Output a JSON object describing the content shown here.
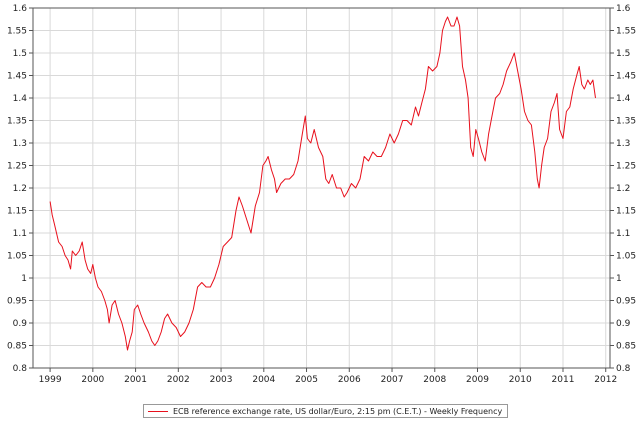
{
  "chart_data": {
    "type": "line",
    "title": "",
    "xlabel": "",
    "ylabel": "",
    "xlim": [
      1998.6,
      2012.1
    ],
    "ylim": [
      0.8,
      1.6
    ],
    "x_ticks": [
      "1999",
      "2000",
      "2001",
      "2002",
      "2003",
      "2004",
      "2005",
      "2006",
      "2007",
      "2008",
      "2009",
      "2010",
      "2011",
      "2012"
    ],
    "y_ticks": [
      "0.8",
      "0.85",
      "0.9",
      "0.95",
      "1",
      "1.05",
      "1.1",
      "1.15",
      "1.2",
      "1.25",
      "1.3",
      "1.35",
      "1.4",
      "1.45",
      "1.5",
      "1.55",
      "1.6"
    ],
    "grid": true,
    "legend_position": "bottom-center",
    "series": [
      {
        "name": "ECB reference exchange rate, US dollar/Euro, 2:15 pm (C.E.T.) - Weekly Frequency",
        "color": "#e8101c",
        "points": [
          [
            1999.0,
            1.17
          ],
          [
            1999.05,
            1.14
          ],
          [
            1999.1,
            1.12
          ],
          [
            1999.15,
            1.1
          ],
          [
            1999.2,
            1.08
          ],
          [
            1999.28,
            1.07
          ],
          [
            1999.35,
            1.05
          ],
          [
            1999.42,
            1.04
          ],
          [
            1999.48,
            1.02
          ],
          [
            1999.52,
            1.06
          ],
          [
            1999.6,
            1.05
          ],
          [
            1999.68,
            1.06
          ],
          [
            1999.75,
            1.08
          ],
          [
            1999.82,
            1.04
          ],
          [
            1999.88,
            1.02
          ],
          [
            1999.95,
            1.01
          ],
          [
            2000.0,
            1.03
          ],
          [
            2000.06,
            1.0
          ],
          [
            2000.12,
            0.98
          ],
          [
            2000.2,
            0.97
          ],
          [
            2000.28,
            0.95
          ],
          [
            2000.34,
            0.93
          ],
          [
            2000.38,
            0.9
          ],
          [
            2000.45,
            0.94
          ],
          [
            2000.52,
            0.95
          ],
          [
            2000.6,
            0.92
          ],
          [
            2000.68,
            0.9
          ],
          [
            2000.76,
            0.87
          ],
          [
            2000.81,
            0.84
          ],
          [
            2000.86,
            0.86
          ],
          [
            2000.92,
            0.88
          ],
          [
            2000.97,
            0.93
          ],
          [
            2001.05,
            0.94
          ],
          [
            2001.12,
            0.92
          ],
          [
            2001.2,
            0.9
          ],
          [
            2001.3,
            0.88
          ],
          [
            2001.38,
            0.86
          ],
          [
            2001.45,
            0.85
          ],
          [
            2001.52,
            0.86
          ],
          [
            2001.6,
            0.88
          ],
          [
            2001.68,
            0.91
          ],
          [
            2001.75,
            0.92
          ],
          [
            2001.85,
            0.9
          ],
          [
            2001.95,
            0.89
          ],
          [
            2002.05,
            0.87
          ],
          [
            2002.15,
            0.88
          ],
          [
            2002.25,
            0.9
          ],
          [
            2002.35,
            0.93
          ],
          [
            2002.45,
            0.98
          ],
          [
            2002.55,
            0.99
          ],
          [
            2002.65,
            0.98
          ],
          [
            2002.75,
            0.98
          ],
          [
            2002.85,
            1.0
          ],
          [
            2002.95,
            1.03
          ],
          [
            2003.05,
            1.07
          ],
          [
            2003.15,
            1.08
          ],
          [
            2003.25,
            1.09
          ],
          [
            2003.35,
            1.15
          ],
          [
            2003.42,
            1.18
          ],
          [
            2003.5,
            1.16
          ],
          [
            2003.6,
            1.13
          ],
          [
            2003.7,
            1.1
          ],
          [
            2003.8,
            1.16
          ],
          [
            2003.9,
            1.19
          ],
          [
            2003.98,
            1.25
          ],
          [
            2004.05,
            1.26
          ],
          [
            2004.1,
            1.27
          ],
          [
            2004.18,
            1.24
          ],
          [
            2004.25,
            1.22
          ],
          [
            2004.3,
            1.19
          ],
          [
            2004.4,
            1.21
          ],
          [
            2004.5,
            1.22
          ],
          [
            2004.6,
            1.22
          ],
          [
            2004.7,
            1.23
          ],
          [
            2004.8,
            1.26
          ],
          [
            2004.9,
            1.32
          ],
          [
            2004.97,
            1.36
          ],
          [
            2005.02,
            1.31
          ],
          [
            2005.1,
            1.3
          ],
          [
            2005.18,
            1.33
          ],
          [
            2005.28,
            1.29
          ],
          [
            2005.38,
            1.27
          ],
          [
            2005.45,
            1.22
          ],
          [
            2005.52,
            1.21
          ],
          [
            2005.6,
            1.23
          ],
          [
            2005.7,
            1.2
          ],
          [
            2005.8,
            1.2
          ],
          [
            2005.88,
            1.18
          ],
          [
            2005.95,
            1.19
          ],
          [
            2006.05,
            1.21
          ],
          [
            2006.15,
            1.2
          ],
          [
            2006.25,
            1.22
          ],
          [
            2006.35,
            1.27
          ],
          [
            2006.45,
            1.26
          ],
          [
            2006.55,
            1.28
          ],
          [
            2006.65,
            1.27
          ],
          [
            2006.75,
            1.27
          ],
          [
            2006.85,
            1.29
          ],
          [
            2006.95,
            1.32
          ],
          [
            2007.05,
            1.3
          ],
          [
            2007.15,
            1.32
          ],
          [
            2007.25,
            1.35
          ],
          [
            2007.35,
            1.35
          ],
          [
            2007.45,
            1.34
          ],
          [
            2007.55,
            1.38
          ],
          [
            2007.62,
            1.36
          ],
          [
            2007.7,
            1.39
          ],
          [
            2007.78,
            1.42
          ],
          [
            2007.85,
            1.47
          ],
          [
            2007.95,
            1.46
          ],
          [
            2008.05,
            1.47
          ],
          [
            2008.12,
            1.5
          ],
          [
            2008.18,
            1.55
          ],
          [
            2008.25,
            1.57
          ],
          [
            2008.3,
            1.58
          ],
          [
            2008.38,
            1.56
          ],
          [
            2008.45,
            1.56
          ],
          [
            2008.52,
            1.58
          ],
          [
            2008.58,
            1.56
          ],
          [
            2008.65,
            1.47
          ],
          [
            2008.72,
            1.44
          ],
          [
            2008.78,
            1.4
          ],
          [
            2008.84,
            1.29
          ],
          [
            2008.9,
            1.27
          ],
          [
            2008.96,
            1.33
          ],
          [
            2009.02,
            1.31
          ],
          [
            2009.1,
            1.28
          ],
          [
            2009.18,
            1.26
          ],
          [
            2009.26,
            1.32
          ],
          [
            2009.34,
            1.36
          ],
          [
            2009.42,
            1.4
          ],
          [
            2009.52,
            1.41
          ],
          [
            2009.6,
            1.43
          ],
          [
            2009.68,
            1.46
          ],
          [
            2009.78,
            1.48
          ],
          [
            2009.86,
            1.5
          ],
          [
            2009.92,
            1.47
          ],
          [
            2010.02,
            1.42
          ],
          [
            2010.1,
            1.37
          ],
          [
            2010.18,
            1.35
          ],
          [
            2010.26,
            1.34
          ],
          [
            2010.34,
            1.28
          ],
          [
            2010.4,
            1.22
          ],
          [
            2010.44,
            1.2
          ],
          [
            2010.5,
            1.25
          ],
          [
            2010.56,
            1.29
          ],
          [
            2010.64,
            1.31
          ],
          [
            2010.72,
            1.37
          ],
          [
            2010.8,
            1.39
          ],
          [
            2010.86,
            1.41
          ],
          [
            2010.92,
            1.33
          ],
          [
            2011.0,
            1.31
          ],
          [
            2011.08,
            1.37
          ],
          [
            2011.16,
            1.38
          ],
          [
            2011.24,
            1.42
          ],
          [
            2011.32,
            1.45
          ],
          [
            2011.38,
            1.47
          ],
          [
            2011.44,
            1.43
          ],
          [
            2011.5,
            1.42
          ],
          [
            2011.58,
            1.44
          ],
          [
            2011.64,
            1.43
          ],
          [
            2011.7,
            1.44
          ],
          [
            2011.76,
            1.4
          ]
        ]
      }
    ]
  }
}
